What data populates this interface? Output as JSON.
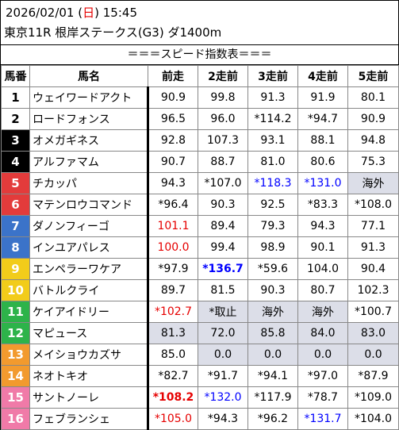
{
  "header": {
    "date": "2026/02/01",
    "day_open": "(",
    "day": "日",
    "day_close": ")",
    "time": "15:45",
    "race": "東京11R 根岸ステークス(G3) ダ1400m"
  },
  "banner": "＝＝＝スピード指数表＝＝＝",
  "columns": [
    "馬番",
    "馬名",
    "前走",
    "2走前",
    "3走前",
    "4走前",
    "5走前"
  ],
  "colors": {
    "red": "#e60000",
    "blue": "#0000ff",
    "gray_cell": "#dcdee8"
  },
  "rows": [
    {
      "num": "1",
      "gate": 1,
      "name": "ウェイワードアクト",
      "vals": [
        {
          "t": "90.9"
        },
        {
          "t": "99.8"
        },
        {
          "t": "91.3"
        },
        {
          "t": "91.9"
        },
        {
          "t": "80.1"
        }
      ]
    },
    {
      "num": "2",
      "gate": 1,
      "name": "ロードフォンス",
      "vals": [
        {
          "t": "96.5"
        },
        {
          "t": "96.0"
        },
        {
          "t": "*114.2"
        },
        {
          "t": "*94.7"
        },
        {
          "t": "90.9"
        }
      ]
    },
    {
      "num": "3",
      "gate": 2,
      "name": "オメガギネス",
      "vals": [
        {
          "t": "92.8"
        },
        {
          "t": "107.3"
        },
        {
          "t": "93.1"
        },
        {
          "t": "88.1"
        },
        {
          "t": "94.8"
        }
      ]
    },
    {
      "num": "4",
      "gate": 2,
      "name": "アルファマム",
      "vals": [
        {
          "t": "90.7"
        },
        {
          "t": "88.7"
        },
        {
          "t": "81.0"
        },
        {
          "t": "80.6"
        },
        {
          "t": "75.3"
        }
      ]
    },
    {
      "num": "5",
      "gate": 3,
      "name": "チカッパ",
      "vals": [
        {
          "t": "94.3"
        },
        {
          "t": "*107.0"
        },
        {
          "t": "*118.3",
          "c": "blue"
        },
        {
          "t": "*131.0",
          "c": "blue"
        },
        {
          "t": "海外",
          "g": true
        }
      ]
    },
    {
      "num": "6",
      "gate": 3,
      "name": "マテンロウコマンド",
      "vals": [
        {
          "t": "*96.4"
        },
        {
          "t": "90.3"
        },
        {
          "t": "92.5"
        },
        {
          "t": "*83.3"
        },
        {
          "t": "*108.0"
        }
      ]
    },
    {
      "num": "7",
      "gate": 4,
      "name": "ダノンフィーゴ",
      "vals": [
        {
          "t": "101.1",
          "c": "red"
        },
        {
          "t": "89.4"
        },
        {
          "t": "79.3"
        },
        {
          "t": "94.3"
        },
        {
          "t": "77.1"
        }
      ]
    },
    {
      "num": "8",
      "gate": 4,
      "name": "インユアパレス",
      "vals": [
        {
          "t": "100.0",
          "c": "red"
        },
        {
          "t": "99.4"
        },
        {
          "t": "98.9"
        },
        {
          "t": "90.1"
        },
        {
          "t": "91.3"
        }
      ]
    },
    {
      "num": "9",
      "gate": 5,
      "name": "エンペラーワケア",
      "vals": [
        {
          "t": "*97.9"
        },
        {
          "t": "*136.7",
          "c": "blue",
          "b": true
        },
        {
          "t": "*59.6"
        },
        {
          "t": "104.0"
        },
        {
          "t": "90.4"
        }
      ]
    },
    {
      "num": "10",
      "gate": 5,
      "name": "バトルクライ",
      "vals": [
        {
          "t": "89.7"
        },
        {
          "t": "81.5"
        },
        {
          "t": "90.3"
        },
        {
          "t": "80.7"
        },
        {
          "t": "102.3"
        }
      ]
    },
    {
      "num": "11",
      "gate": 6,
      "name": "ケイアイドリー",
      "vals": [
        {
          "t": "*102.7",
          "c": "red"
        },
        {
          "t": "*取止",
          "g": true
        },
        {
          "t": "海外",
          "g": true
        },
        {
          "t": "海外",
          "g": true
        },
        {
          "t": "*100.7"
        }
      ]
    },
    {
      "num": "12",
      "gate": 6,
      "name": "マピュース",
      "vals": [
        {
          "t": "81.3",
          "g": true
        },
        {
          "t": "72.0",
          "g": true
        },
        {
          "t": "85.8",
          "g": true
        },
        {
          "t": "84.0",
          "g": true
        },
        {
          "t": "83.0",
          "g": true
        }
      ]
    },
    {
      "num": "13",
      "gate": 7,
      "name": "メイショウカズサ",
      "vals": [
        {
          "t": "85.0"
        },
        {
          "t": "0.0",
          "g": true
        },
        {
          "t": "0.0",
          "g": true
        },
        {
          "t": "0.0",
          "g": true
        },
        {
          "t": "0.0",
          "g": true
        }
      ]
    },
    {
      "num": "14",
      "gate": 7,
      "name": "ネオトキオ",
      "vals": [
        {
          "t": "*82.7"
        },
        {
          "t": "*91.7"
        },
        {
          "t": "*94.1"
        },
        {
          "t": "*97.0"
        },
        {
          "t": "*87.9"
        }
      ]
    },
    {
      "num": "15",
      "gate": 8,
      "name": "サントノーレ",
      "vals": [
        {
          "t": "*108.2",
          "c": "red",
          "b": true
        },
        {
          "t": "*132.0",
          "c": "blue"
        },
        {
          "t": "*117.9"
        },
        {
          "t": "*78.7"
        },
        {
          "t": "*109.0"
        }
      ]
    },
    {
      "num": "16",
      "gate": 8,
      "name": "フェブランシェ",
      "vals": [
        {
          "t": "*105.0",
          "c": "red"
        },
        {
          "t": "*94.3"
        },
        {
          "t": "*96.2"
        },
        {
          "t": "*131.7",
          "c": "blue"
        },
        {
          "t": "*104.0"
        }
      ]
    }
  ]
}
